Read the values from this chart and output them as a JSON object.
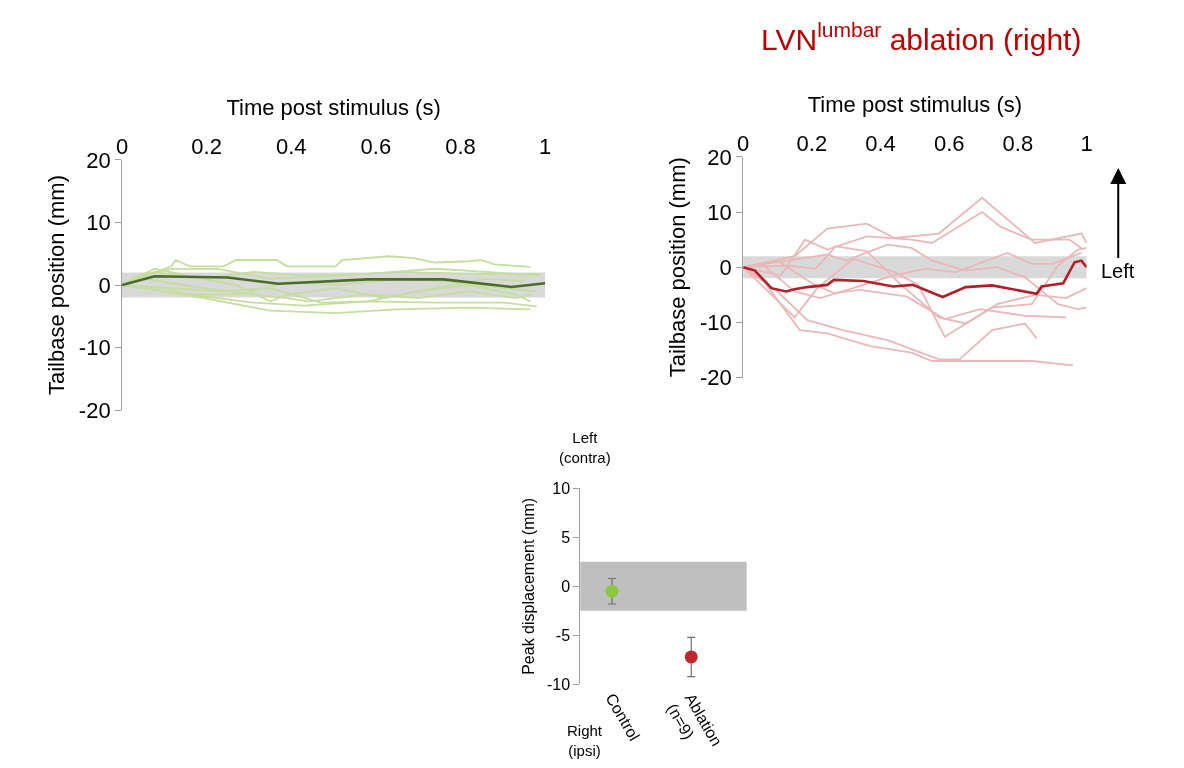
{
  "chart_data": [
    {
      "type": "line",
      "xlabel": "Time post stimulus (s)",
      "ylabel": "Tailbase position (mm)",
      "xlim": [
        0,
        1
      ],
      "xticks": [
        0,
        0.2,
        0.4,
        0.6,
        0.8,
        1
      ],
      "ylim": [
        -20,
        20
      ],
      "yticks": [
        -20,
        -10,
        0,
        10,
        20
      ],
      "bands": [
        {
          "axis": "y",
          "from": -2,
          "to": 2,
          "color": "#d9d9d9"
        }
      ],
      "series": [
        {
          "color": "#c5dea0",
          "x": [
            0,
            0.116,
            0.127,
            0.16,
            0.24,
            0.27,
            0.365,
            0.39,
            0.505,
            0.52,
            0.63,
            0.69,
            0.74,
            0.82,
            0.848,
            0.88,
            0.965
          ],
          "values": [
            0,
            3.0,
            4.0,
            3.0,
            3.0,
            4.0,
            4.0,
            3.0,
            3.0,
            4.0,
            4.6,
            4.3,
            3.6,
            3.8,
            4.0,
            3.3,
            2.9
          ]
        },
        {
          "color": "#c5dea0",
          "x": [
            0,
            0.194,
            0.35,
            0.505,
            0.646,
            0.82,
            0.965
          ],
          "values": [
            0,
            -2.1,
            -4.1,
            -4.5,
            -3.9,
            -3.6,
            -3.9
          ]
        },
        {
          "color": "#c5dea0",
          "x": [
            0,
            0.155,
            0.31,
            0.43,
            0.58,
            0.74,
            0.9,
            0.98
          ],
          "values": [
            0,
            -1.5,
            -2.8,
            -3.3,
            -2.6,
            -2.8,
            -2.8,
            -3.4
          ]
        },
        {
          "color": "#c5dea0",
          "x": [
            0,
            0.038,
            0.116,
            0.225,
            0.35,
            0.505,
            0.66,
            0.82,
            0.99
          ],
          "values": [
            0,
            1.5,
            2.6,
            2.6,
            1.0,
            1.5,
            2.1,
            1.8,
            1.8
          ]
        },
        {
          "color": "#c5dea0",
          "x": [
            0,
            0.077,
            0.155,
            0.27,
            0.35,
            0.395,
            0.505,
            0.62,
            0.74,
            0.86,
            0.95
          ],
          "values": [
            0,
            2.6,
            1.5,
            0,
            -2.6,
            -1.5,
            -0.5,
            -2.1,
            -0.5,
            1.0,
            0.6
          ]
        },
        {
          "color": "#c5dea0",
          "x": [
            0,
            0.054,
            0.194,
            0.31,
            0.39,
            0.44,
            0.58,
            0.7,
            0.82,
            0.93,
            0.97
          ],
          "values": [
            0,
            1.0,
            -0.5,
            -1.5,
            -2.1,
            -2.6,
            -1.5,
            -2.1,
            -1.0,
            -2.1,
            -1.5
          ]
        },
        {
          "color": "#c5dea0",
          "x": [
            0,
            0.077,
            0.194,
            0.31,
            0.43,
            0.58,
            0.74,
            0.86,
            0.985
          ],
          "values": [
            0,
            2.1,
            1.0,
            2.1,
            1.5,
            1.8,
            2.6,
            2.1,
            1.5
          ]
        },
        {
          "color": "#c5dea0",
          "x": [
            0,
            0.116,
            0.233,
            0.35,
            0.47,
            0.58,
            0.7,
            0.82,
            0.93,
            0.965
          ],
          "values": [
            0,
            -0.5,
            -1.0,
            -0.5,
            -2.8,
            -2.6,
            -1.0,
            0,
            -1.5,
            -2.6
          ]
        },
        {
          "color": "#c5dea0",
          "x": [
            0,
            0.1,
            0.155,
            0.27,
            0.39,
            0.505,
            0.66,
            0.78,
            0.9,
            0.98
          ],
          "values": [
            0,
            -0.5,
            -1.5,
            -1.5,
            0.5,
            0,
            1.0,
            0.5,
            -0.5,
            -1.0
          ]
        },
        {
          "color": "#4a6b2a",
          "x": [
            0,
            0.077,
            0.25,
            0.37,
            0.58,
            0.76,
            0.92,
            1.0
          ],
          "values": [
            0,
            1.4,
            1.2,
            0.2,
            0.9,
            0.9,
            -0.3,
            0.3
          ]
        }
      ]
    },
    {
      "type": "line",
      "title": "LVN$^{lumbar}$ ablation (right)",
      "xlabel": "Time post stimulus (s)",
      "ylabel": "Tailbase position (mm)",
      "xlim": [
        0,
        1
      ],
      "xticks": [
        0,
        0.2,
        0.4,
        0.6,
        0.8,
        1
      ],
      "ylim": [
        -20,
        20
      ],
      "yticks": [
        -20,
        -10,
        0,
        10,
        20
      ],
      "bands": [
        {
          "axis": "y",
          "from": -2,
          "to": 2,
          "color": "#d9d9d9"
        }
      ],
      "annotations": [
        "Left"
      ],
      "series": [
        {
          "color": "#eab8b8",
          "x": [
            0,
            0.15,
            0.245,
            0.36,
            0.44,
            0.57,
            0.696,
            0.85,
            0.985,
            1.0
          ],
          "values": [
            0,
            2,
            7,
            7.9,
            5.3,
            6.1,
            12.6,
            4.4,
            6.1,
            4.4
          ]
        },
        {
          "color": "#eab8b8",
          "x": [
            0,
            0.11,
            0.18,
            0.245,
            0.36,
            0.49,
            0.55,
            0.696,
            0.75,
            0.84,
            0.95,
            0.99
          ],
          "values": [
            0,
            -1.5,
            5,
            3.2,
            5.6,
            5,
            4.4,
            10,
            7.3,
            5,
            5,
            3.2
          ]
        },
        {
          "color": "#eab8b8",
          "x": [
            0,
            0.053,
            0.165,
            0.245,
            0.37,
            0.49,
            0.55,
            0.84,
            0.96
          ],
          "values": [
            0,
            -2,
            -11.4,
            -12,
            -14.3,
            -15.5,
            -17,
            -17,
            -17.8
          ]
        },
        {
          "color": "#eab8b8",
          "x": [
            0,
            0.1,
            0.187,
            0.29,
            0.42,
            0.57,
            0.63,
            0.725,
            0.82,
            0.855
          ],
          "values": [
            0,
            -4.4,
            -9.6,
            -11.4,
            -13.2,
            -16.7,
            -16.7,
            -11.4,
            -10.2,
            -12.9
          ]
        },
        {
          "color": "#eab8b8",
          "x": [
            0,
            0.15,
            0.216,
            0.32,
            0.437,
            0.51,
            0.587,
            0.725,
            0.84,
            0.917,
            0.975,
            1.0
          ],
          "values": [
            0,
            -9.1,
            -3.8,
            1.5,
            -0.8,
            -3.2,
            -12.6,
            -7.3,
            -6.7,
            0.3,
            3.2,
            3.5
          ]
        },
        {
          "color": "#eab8b8",
          "x": [
            0,
            0.13,
            0.21,
            0.27,
            0.36,
            0.46,
            0.57,
            0.648,
            0.74,
            0.85,
            0.94,
            1.0
          ],
          "values": [
            0,
            0.3,
            -0.3,
            3.8,
            2.9,
            -3.2,
            -9.1,
            -10.2,
            -6.7,
            -5,
            -5.6,
            -3.8
          ]
        },
        {
          "color": "#eab8b8",
          "x": [
            0,
            0.245,
            0.3,
            0.42,
            0.49,
            0.55,
            0.648,
            0.74,
            0.82,
            0.917,
            0.975,
            1.0
          ],
          "values": [
            0,
            2.3,
            1.2,
            4.1,
            3.5,
            1.2,
            -0.6,
            0,
            -1.8,
            -6.7,
            -7.6,
            -7.3
          ]
        },
        {
          "color": "#eab8b8",
          "x": [
            0,
            0.1,
            0.2,
            0.264,
            0.34,
            0.475,
            0.587,
            0.69,
            0.82,
            0.94
          ],
          "values": [
            0,
            1.2,
            -2.9,
            -4.7,
            -4.1,
            -5.3,
            -9.4,
            -7.6,
            -8.8,
            -9.1
          ]
        },
        {
          "color": "#eab8b8",
          "x": [
            0,
            0.06,
            0.15,
            0.224,
            0.32,
            0.437,
            0.53,
            0.62,
            0.77,
            0.84,
            0.9,
            0.985
          ],
          "values": [
            0,
            0.3,
            -4.4,
            -5.6,
            -3.8,
            -1.5,
            -0.3,
            -0.9,
            2.6,
            0.6,
            0.6,
            2.6
          ]
        },
        {
          "color": "#b0202a",
          "x": [
            0,
            0.034,
            0.082,
            0.125,
            0.149,
            0.187,
            0.245,
            0.264,
            0.35,
            0.437,
            0.494,
            0.581,
            0.648,
            0.725,
            0.855,
            0.869,
            0.932,
            0.965,
            0.985,
            1.0
          ],
          "values": [
            0,
            -0.6,
            -3.8,
            -4.4,
            -4.0,
            -3.6,
            -3.2,
            -2.3,
            -2.5,
            -3.5,
            -3.2,
            -5.4,
            -3.6,
            -3.3,
            -4.8,
            -3.5,
            -2.9,
            0.9,
            1.2,
            0
          ]
        }
      ]
    },
    {
      "type": "scatter",
      "ylabel": "Peak displacement (mm)",
      "categories": [
        "Control",
        "Ablation\n(n=9)"
      ],
      "values": [
        -0.5,
        -7.2
      ],
      "colors": [
        "#8dc63f",
        "#c1272d"
      ],
      "errors": [
        [
          -1.8,
          0.8
        ],
        [
          -9.2,
          -5.2
        ]
      ],
      "marker": "circle",
      "ylim": [
        -10,
        10
      ],
      "yticks": [
        -10,
        -5,
        0,
        5,
        10
      ],
      "bands": [
        {
          "axis": "y",
          "from": -2.5,
          "to": 2.5,
          "color": "#bfbfbf"
        }
      ],
      "annotations": [
        "Left\n(contra)",
        "Right\n(ipsi)"
      ]
    }
  ]
}
